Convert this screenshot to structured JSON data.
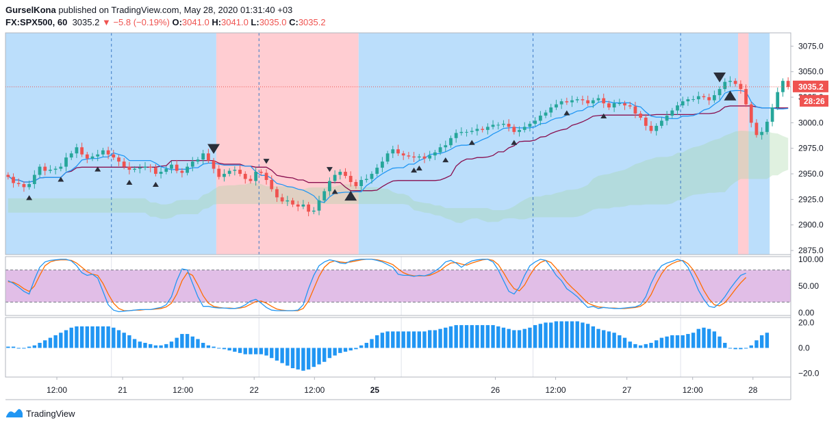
{
  "header": {
    "author": "GurselKona",
    "published_text": "published on TradingView.com, May 28, 2020 01:31:40 +03",
    "symbol": "FX:SPX500, 60",
    "last": "3035.2",
    "change": "−5.8 (−0.19%)",
    "open_label": "O:",
    "open": "3041.0",
    "high_label": "H:",
    "high": "3041.0",
    "low_label": "L:",
    "low": "3035.0",
    "close_label": "C:",
    "close": "3035.2"
  },
  "footer": {
    "brand": "TradingView"
  },
  "colors": {
    "up": "#26a69a",
    "down": "#ef5350",
    "bg_blue": "#bbdefb",
    "bg_red": "#ffcdd2",
    "tenkan": "#2196f3",
    "kijun": "#880e4f",
    "stoch_k": "#2196f3",
    "stoch_d": "#ff6d00",
    "stoch_band": "#e1bee7",
    "hist": "#2196f3"
  },
  "chart_data": [
    {
      "type": "candlestick",
      "panel": "price",
      "y_ticks": [
        "3075.0",
        "3050.0",
        "3025.0",
        "3000.0",
        "2975.0",
        "2950.0",
        "2925.0",
        "2900.0",
        "2875.0"
      ],
      "ylim": [
        2871,
        3088
      ],
      "last_price_label": "3035.2",
      "countdown_label": "28:26",
      "last_price": 3035.2,
      "x_labels": [
        "12:00",
        "21",
        "12:00",
        "22",
        "12:00",
        "25",
        "26",
        "12:00",
        "27",
        "12:00",
        "28"
      ],
      "background_regions": [
        {
          "from": 0,
          "to": 40,
          "color": "blue"
        },
        {
          "from": 40,
          "to": 67,
          "color": "red"
        },
        {
          "from": 67,
          "to": 139,
          "color": "blue"
        },
        {
          "from": 139,
          "to": 141,
          "color": "red"
        },
        {
          "from": 141,
          "to": 145,
          "color": "blue"
        }
      ],
      "closes": [
        2947,
        2941,
        2940,
        2937,
        2940,
        2949,
        2957,
        2953,
        2954,
        2955,
        2957,
        2966,
        2970,
        2976,
        2969,
        2965,
        2967,
        2969,
        2973,
        2969,
        2966,
        2962,
        2957,
        2954,
        2955,
        2956,
        2957,
        2956,
        2950,
        2952,
        2955,
        2959,
        2953,
        2951,
        2957,
        2962,
        2964,
        2970,
        2963,
        2955,
        2947,
        2950,
        2953,
        2954,
        2950,
        2945,
        2943,
        2952,
        2951,
        2944,
        2935,
        2927,
        2923,
        2924,
        2920,
        2918,
        2920,
        2913,
        2914,
        2924,
        2933,
        2943,
        2949,
        2952,
        2948,
        2942,
        2938,
        2944,
        2945,
        2950,
        2956,
        2962,
        2970,
        2974,
        2970,
        2968,
        2967,
        2966,
        2967,
        2965,
        2968,
        2971,
        2976,
        2978,
        2985,
        2990,
        2991,
        2991,
        2992,
        2994,
        2993,
        2996,
        2998,
        2998,
        2999,
        2996,
        2991,
        2993,
        2996,
        2999,
        3002,
        3007,
        3010,
        3015,
        3018,
        3021,
        3020,
        3022,
        3023,
        3022,
        3019,
        3022,
        3024,
        3019,
        3015,
        3019,
        3019,
        3017,
        3016,
        3009,
        3005,
        2997,
        2992,
        2997,
        3002,
        3007,
        3012,
        3017,
        3021,
        3023,
        3023,
        3026,
        3025,
        3022,
        3027,
        3033,
        3040,
        3041,
        3038,
        3033,
        3018,
        3000,
        2988,
        2991,
        3001,
        3015,
        3030,
        3041,
        3035
      ],
      "markers_up_small_at": [
        4,
        10,
        17,
        23,
        28,
        62,
        77,
        78,
        83,
        88,
        96,
        106,
        113
      ],
      "markers_down_small_at": [
        49,
        61
      ],
      "markers_up_large_at": [
        65,
        137
      ],
      "markers_down_large_at": [
        39,
        135
      ]
    },
    {
      "type": "line",
      "panel": "stochastic",
      "y_ticks": [
        "100.00",
        "50.00",
        "0.00"
      ],
      "ylim": [
        -5,
        105
      ],
      "bands": [
        20,
        80
      ],
      "series": [
        {
          "key": "k",
          "values": [
            60,
            55,
            48,
            40,
            35,
            62,
            85,
            95,
            98,
            99,
            100,
            100,
            97,
            88,
            75,
            70,
            72,
            65,
            40,
            15,
            5,
            2,
            3,
            4,
            5,
            6,
            6,
            6,
            8,
            10,
            15,
            30,
            60,
            82,
            80,
            55,
            30,
            12,
            12,
            10,
            9,
            9,
            8,
            8,
            10,
            15,
            22,
            25,
            18,
            10,
            5,
            4,
            4,
            4,
            4,
            5,
            15,
            45,
            70,
            88,
            95,
            99,
            97,
            93,
            92,
            97,
            99,
            100,
            100,
            100,
            98,
            95,
            90,
            85,
            72,
            70,
            70,
            68,
            70,
            69,
            72,
            78,
            85,
            95,
            98,
            93,
            85,
            92,
            97,
            99,
            100,
            100,
            95,
            80,
            60,
            40,
            35,
            48,
            70,
            88,
            95,
            100,
            98,
            85,
            70,
            60,
            45,
            38,
            30,
            20,
            10,
            12,
            8,
            10,
            9,
            8,
            8,
            9,
            10,
            11,
            15,
            30,
            55,
            75,
            88,
            93,
            96,
            100,
            97,
            85,
            65,
            42,
            25,
            12,
            10,
            18,
            30,
            45,
            58,
            70,
            74
          ]
        },
        {
          "key": "d",
          "values": [
            58,
            57,
            52,
            45,
            40,
            50,
            70,
            88,
            95,
            98,
            99,
            99,
            98,
            93,
            85,
            77,
            72,
            70,
            55,
            35,
            18,
            8,
            4,
            4,
            5,
            5,
            6,
            6,
            7,
            8,
            11,
            18,
            35,
            60,
            75,
            70,
            52,
            32,
            18,
            12,
            10,
            9,
            9,
            8,
            9,
            11,
            16,
            21,
            22,
            18,
            12,
            7,
            5,
            4,
            4,
            4,
            8,
            22,
            45,
            68,
            85,
            94,
            97,
            95,
            94,
            95,
            97,
            99,
            100,
            100,
            99,
            97,
            94,
            90,
            82,
            75,
            71,
            69,
            69,
            69,
            70,
            74,
            79,
            87,
            93,
            94,
            91,
            89,
            93,
            96,
            99,
            100,
            98,
            90,
            75,
            58,
            45,
            41,
            52,
            70,
            85,
            94,
            98,
            94,
            83,
            70,
            57,
            47,
            38,
            28,
            18,
            14,
            11,
            10,
            9,
            9,
            8,
            8,
            9,
            10,
            12,
            19,
            34,
            55,
            73,
            86,
            92,
            96,
            98,
            92,
            80,
            62,
            42,
            26,
            15,
            13,
            19,
            31,
            44,
            56,
            66
          ]
        }
      ]
    },
    {
      "type": "bar",
      "panel": "histogram",
      "y_ticks": [
        "20.0",
        "0.0",
        "−20.0"
      ],
      "ylim": [
        -23,
        24
      ],
      "values": [
        1,
        1,
        0,
        0,
        1,
        2,
        4,
        6,
        8,
        10,
        12,
        14,
        16,
        17,
        17,
        17,
        17,
        17,
        17,
        17,
        16,
        14,
        12,
        10,
        7,
        5,
        4,
        3,
        2,
        2,
        3,
        5,
        8,
        11,
        11,
        9,
        7,
        4,
        2,
        1,
        0,
        -1,
        -2,
        -3,
        -4,
        -5,
        -5,
        -5,
        -5,
        -6,
        -8,
        -10,
        -12,
        -14,
        -16,
        -17,
        -18,
        -17,
        -15,
        -13,
        -11,
        -8,
        -6,
        -4,
        -3,
        -2,
        -1,
        2,
        4,
        7,
        10,
        12,
        13,
        13,
        13,
        13,
        13,
        13,
        13,
        13,
        14,
        14,
        15,
        16,
        17,
        18,
        18,
        18,
        18,
        18,
        18,
        18,
        18,
        17,
        16,
        15,
        14,
        14,
        15,
        16,
        18,
        19,
        20,
        20,
        21,
        21,
        21,
        21,
        21,
        20,
        19,
        17,
        15,
        14,
        13,
        12,
        10,
        8,
        5,
        3,
        2,
        3,
        4,
        6,
        8,
        9,
        10,
        10,
        10,
        11,
        12,
        15,
        16,
        15,
        13,
        9,
        4,
        0,
        -1,
        -1,
        0,
        2,
        6,
        10,
        12
      ]
    }
  ]
}
